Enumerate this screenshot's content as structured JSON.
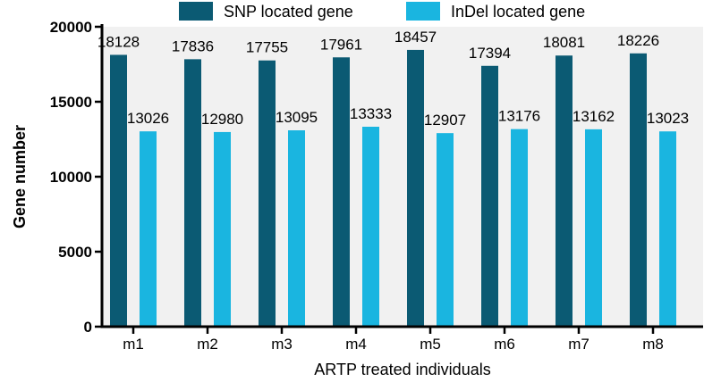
{
  "chart_data": {
    "type": "bar",
    "categories": [
      "m1",
      "m2",
      "m3",
      "m4",
      "m5",
      "m6",
      "m7",
      "m8"
    ],
    "series": [
      {
        "name": "SNP located gene",
        "color": "#0b5a73",
        "values": [
          18128,
          17836,
          17755,
          17961,
          18457,
          17394,
          18081,
          18226
        ]
      },
      {
        "name": "InDel located gene",
        "color": "#1ab5e0",
        "values": [
          13026,
          12980,
          13095,
          13333,
          12907,
          13176,
          13162,
          13023
        ]
      }
    ],
    "data_labels": [
      [
        "18128",
        "17836",
        "17755",
        "17961",
        "18457",
        "17394",
        "18081",
        "18226"
      ],
      [
        "13026",
        "12980",
        "13095",
        "13333",
        "12907",
        "13176",
        "13162",
        "13023"
      ]
    ],
    "title": "",
    "xlabel": "ARTP treated individuals",
    "ylabel": "Gene number",
    "ylim": [
      0,
      20000
    ],
    "yticks": [
      "0",
      "5000",
      "10000",
      "15000",
      "20000"
    ],
    "grid": false,
    "legend_position": "top"
  }
}
